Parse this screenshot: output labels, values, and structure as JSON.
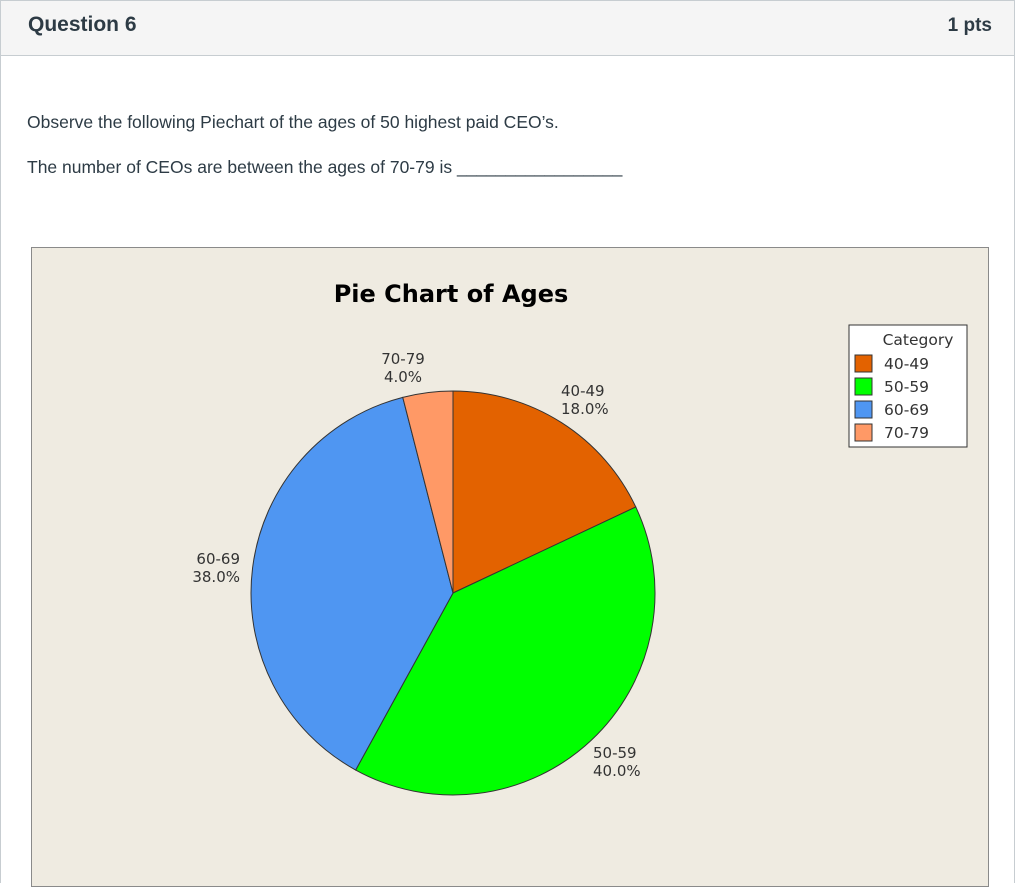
{
  "question": {
    "title": "Question 6",
    "points": "1 pts",
    "prompt_line1": "Observe the following Piechart of the ages of 50 highest paid CEO’s.",
    "prompt_line2": "The number of CEOs are between the ages of 70-79 is _________________"
  },
  "chart_data": {
    "type": "pie",
    "title": "Pie Chart of Ages",
    "legend_title": "Category",
    "legend_position": "top-right",
    "slices": [
      {
        "label": "40-49",
        "value": 18.0,
        "pct_label": "18.0%",
        "color": "#e36200"
      },
      {
        "label": "50-59",
        "value": 40.0,
        "pct_label": "40.0%",
        "color": "#00ff00"
      },
      {
        "label": "60-69",
        "value": 38.0,
        "pct_label": "38.0%",
        "color": "#4f96f2"
      },
      {
        "label": "70-79",
        "value": 4.0,
        "pct_label": "4.0%",
        "color": "#ff9966"
      }
    ]
  }
}
